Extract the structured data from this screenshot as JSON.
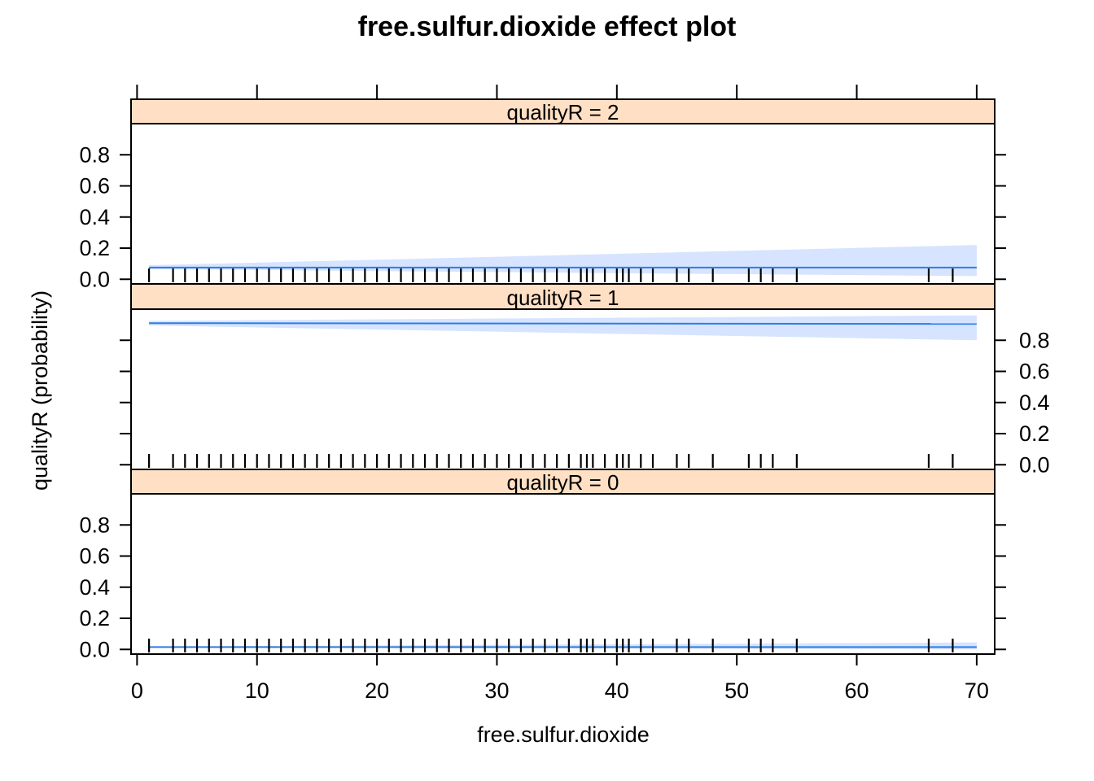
{
  "chart_data": {
    "type": "line",
    "title": "free.sulfur.dioxide effect plot",
    "xlabel": "free.sulfur.dioxide",
    "ylabel": "qualityR (probability)",
    "xlim": [
      -0.5,
      71.5
    ],
    "ylim": [
      -0.03,
      1.0
    ],
    "x_ticks": [
      0,
      10,
      20,
      30,
      40,
      50,
      60,
      70
    ],
    "x_tick_labels": [
      "0",
      "10",
      "20",
      "30",
      "40",
      "50",
      "60",
      "70"
    ],
    "y_ticks": [
      0.0,
      0.2,
      0.4,
      0.6,
      0.8
    ],
    "y_tick_labels": [
      "0.0",
      "0.2",
      "0.4",
      "0.6",
      "0.8"
    ],
    "rug_x": [
      1,
      3,
      4,
      5,
      6,
      7,
      8,
      9,
      10,
      11,
      12,
      13,
      14,
      15,
      16,
      17,
      18,
      19,
      20,
      21,
      22,
      23,
      24,
      25,
      26,
      27,
      28,
      29,
      30,
      31,
      32,
      33,
      34,
      35,
      36,
      37,
      37.5,
      38,
      39,
      40,
      40.5,
      41,
      42,
      43,
      45,
      46,
      48,
      51,
      52,
      53,
      55,
      66,
      68
    ],
    "colors": {
      "strip": "#ffe0c4",
      "band": "#d6e4ff",
      "line": "#2f7de1"
    },
    "panels": [
      {
        "label": "qualityR = 2",
        "y_axis_side": "left",
        "x": [
          1,
          70
        ],
        "fit": [
          0.075,
          0.075
        ],
        "lower": [
          0.065,
          0.02
        ],
        "upper": [
          0.09,
          0.22
        ]
      },
      {
        "label": "qualityR = 1",
        "y_axis_side": "right",
        "x": [
          1,
          70
        ],
        "fit": [
          0.91,
          0.905
        ],
        "lower": [
          0.895,
          0.8
        ],
        "upper": [
          0.925,
          0.96
        ]
      },
      {
        "label": "qualityR = 0",
        "y_axis_side": "left",
        "x": [
          1,
          70
        ],
        "fit": [
          0.015,
          0.015
        ],
        "lower": [
          0.012,
          0.0
        ],
        "upper": [
          0.018,
          0.045
        ]
      }
    ]
  }
}
